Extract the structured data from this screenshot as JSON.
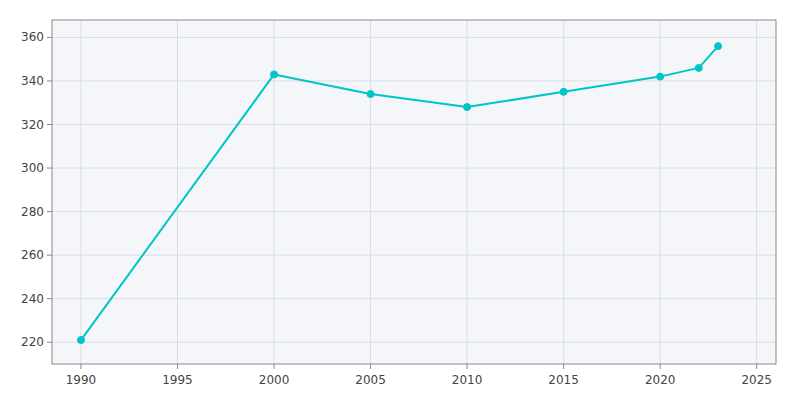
{
  "chart_data": {
    "type": "line",
    "x": [
      1990,
      2000,
      2005,
      2010,
      2015,
      2020,
      2022,
      2023
    ],
    "values": [
      221,
      343,
      334,
      328,
      335,
      342,
      346,
      356
    ],
    "color": "#00C5C8",
    "marker": "circle",
    "xlim": [
      1988.5,
      2026
    ],
    "ylim": [
      210,
      368
    ],
    "xticks": [
      1990,
      1995,
      2000,
      2005,
      2010,
      2015,
      2020,
      2025
    ],
    "yticks": [
      220,
      240,
      260,
      280,
      300,
      320,
      340,
      360
    ],
    "grid": true
  }
}
